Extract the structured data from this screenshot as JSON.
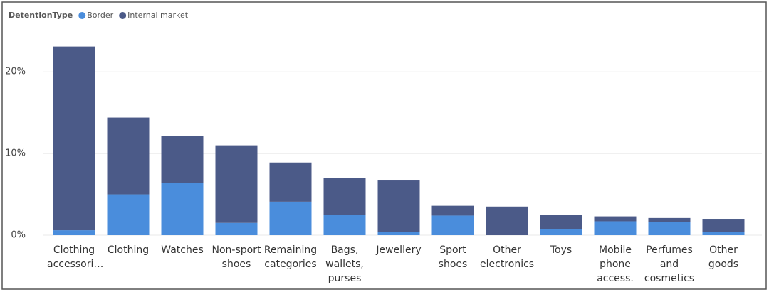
{
  "chart_data": {
    "type": "stacked-bar",
    "legend_title": "DetentionType",
    "legend_position": "top-left",
    "categories": [
      "Clothing accessori…",
      "Clothing",
      "Watches",
      "Non-sport shoes",
      "Remaining categories",
      "Bags, wallets, purses",
      "Jewellery",
      "Sport shoes",
      "Other electronics",
      "Toys",
      "Mobile phone access.",
      "Perfumes and cosmetics",
      "Other goods"
    ],
    "series": [
      {
        "name": "Border",
        "color": "#4a8ddc",
        "values": [
          0.6,
          5.0,
          6.4,
          1.5,
          4.1,
          2.5,
          0.4,
          2.4,
          0,
          0.7,
          1.7,
          1.6,
          0.4
        ]
      },
      {
        "name": "Internal market",
        "color": "#4b5a88",
        "values": [
          22.5,
          9.4,
          5.7,
          9.5,
          4.8,
          4.5,
          6.3,
          1.2,
          3.5,
          1.8,
          0.6,
          0.5,
          1.6
        ]
      }
    ],
    "ylim": [
      0,
      26.2
    ],
    "yticks": [
      {
        "value": 0,
        "label": "0%"
      },
      {
        "value": 10,
        "label": "10%"
      },
      {
        "value": 20,
        "label": "20%"
      }
    ],
    "grid": true
  }
}
